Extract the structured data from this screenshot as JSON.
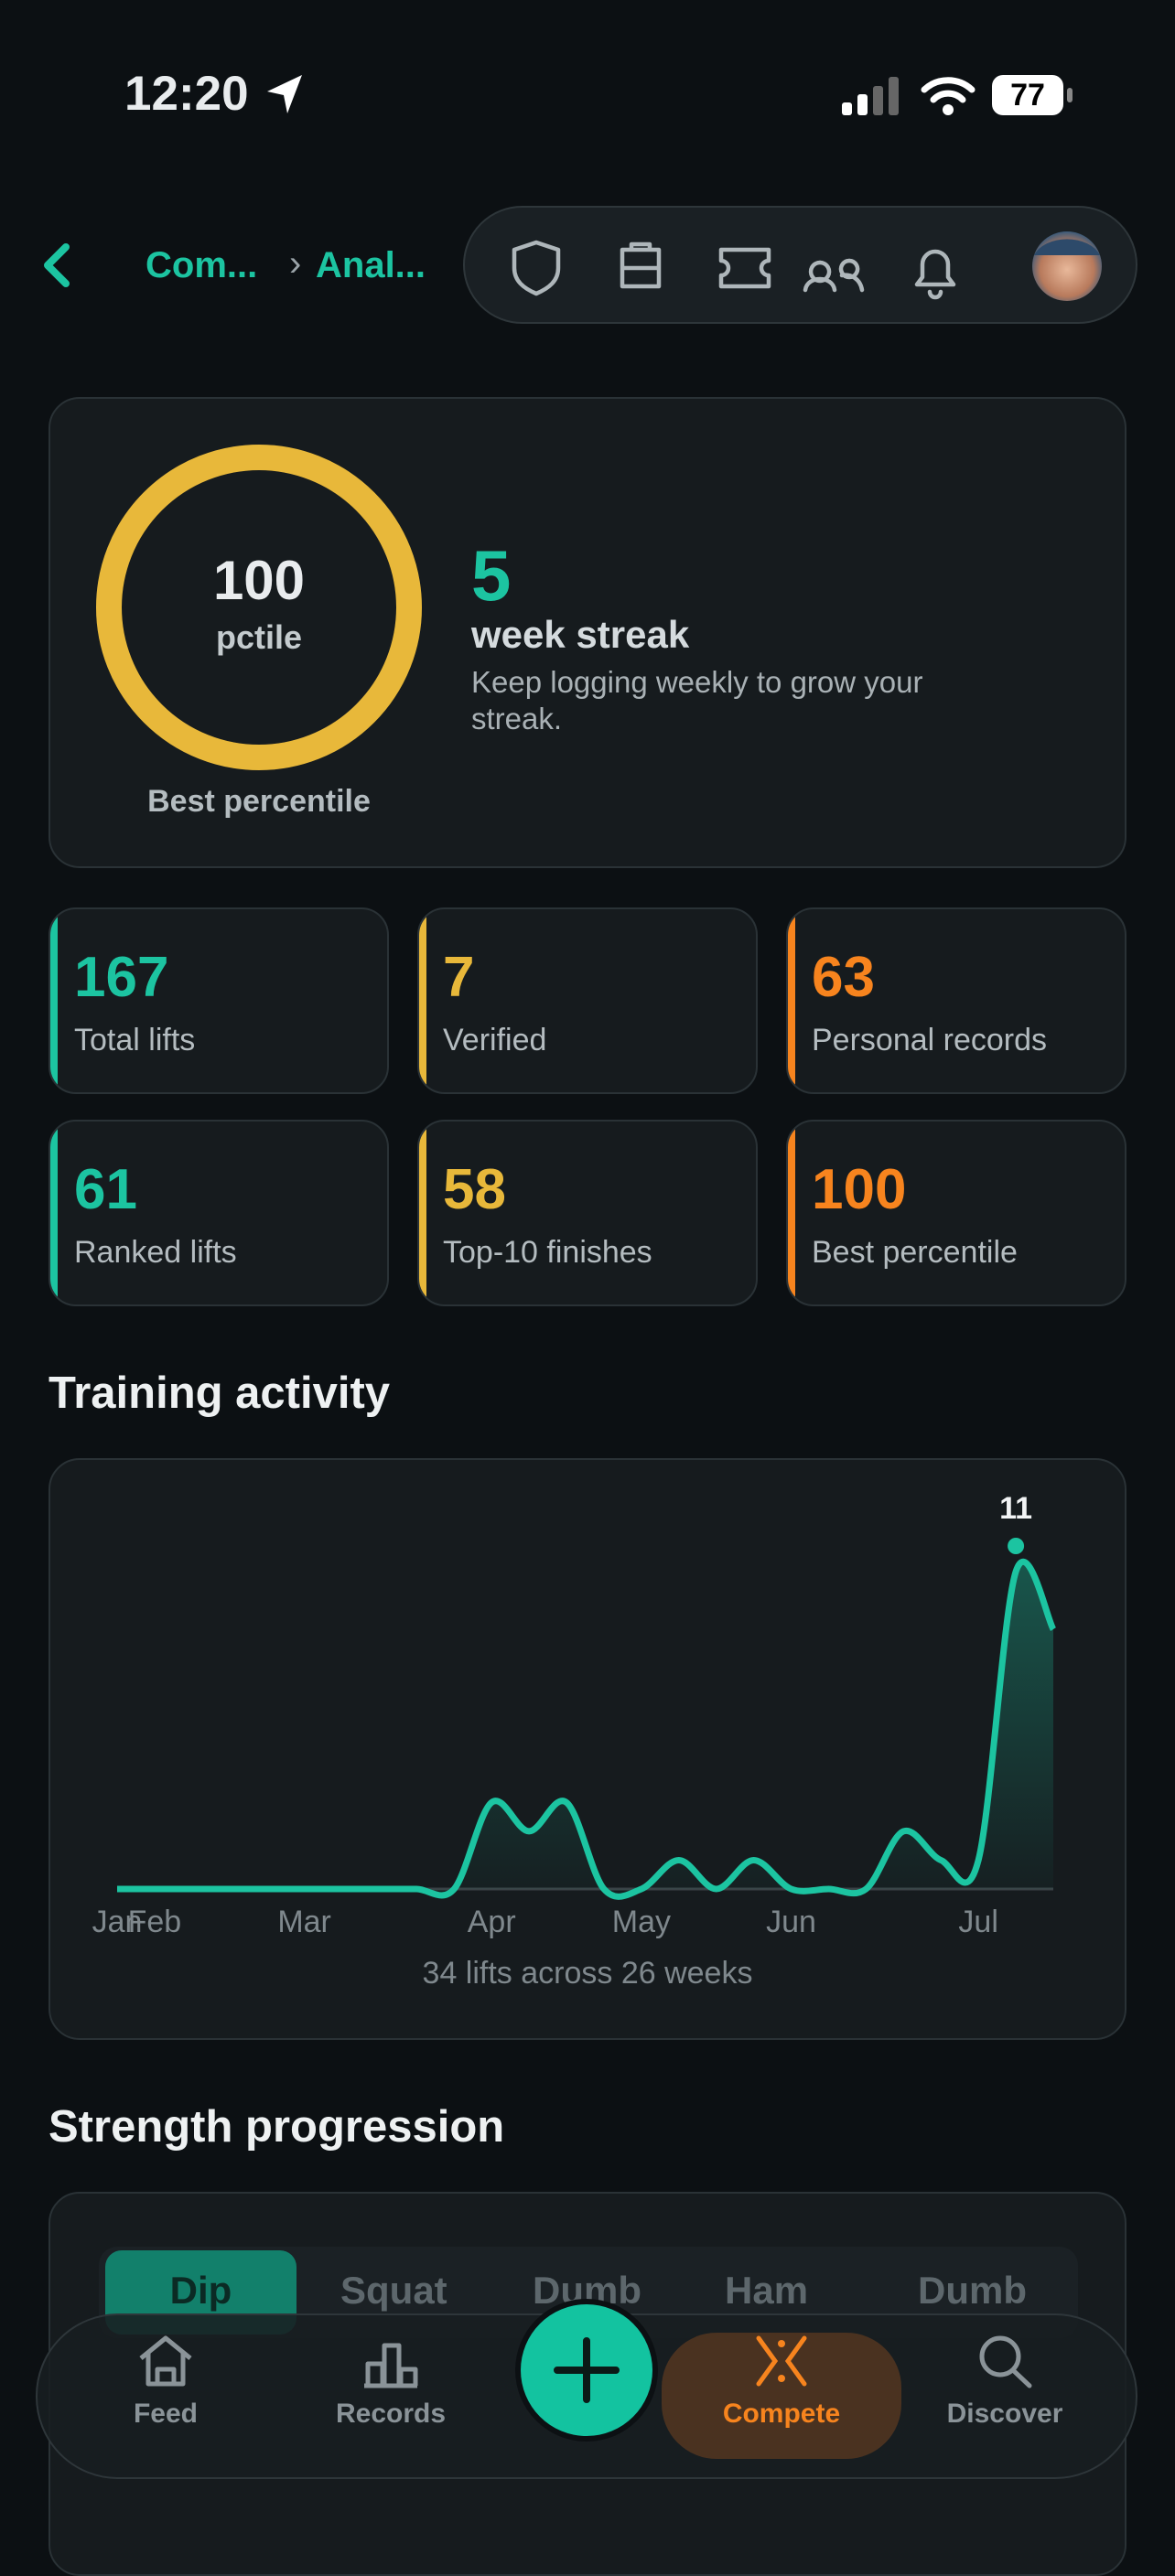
{
  "status_bar": {
    "time": "12:20",
    "battery": 77
  },
  "header": {
    "breadcrumb": [
      "Com...",
      "Anal..."
    ]
  },
  "summary": {
    "percentile": 100,
    "percentile_unit": "pctile",
    "percentile_label": "Best percentile",
    "streak": 5,
    "streak_label": "week streak",
    "streak_hint": "Keep logging weekly to grow your streak."
  },
  "stats": [
    {
      "value": 167,
      "label": "Total lifts"
    },
    {
      "value": 7,
      "label": "Verified"
    },
    {
      "value": 63,
      "label": "Personal records"
    },
    {
      "value": 61,
      "label": "Ranked lifts"
    },
    {
      "value": 58,
      "label": "Top-10 finishes"
    },
    {
      "value": 100,
      "label": "Best percentile"
    }
  ],
  "training_activity": {
    "title": "Training activity",
    "type": "line",
    "categories": [
      "Jan",
      "Feb",
      null,
      null,
      null,
      "Mar",
      null,
      null,
      null,
      null,
      "Apr",
      null,
      null,
      null,
      "May",
      null,
      null,
      null,
      "Jun",
      null,
      null,
      null,
      null,
      "Jul",
      null,
      null
    ],
    "values": [
      0,
      0,
      0,
      0,
      0,
      0,
      0,
      0,
      0,
      0,
      3,
      2,
      3,
      0,
      0,
      1,
      0,
      1,
      0,
      0,
      0,
      2,
      1,
      1,
      11,
      9
    ],
    "caption": "34 lifts across 26 weeks"
  },
  "strength_progression": {
    "title": "Strength progression",
    "tabs": [
      "Dip",
      "Squat",
      "Dumb",
      "Ham",
      "Dumb"
    ]
  },
  "bottom_nav": [
    "Feed",
    "Records",
    "Compete",
    "Discover"
  ]
}
